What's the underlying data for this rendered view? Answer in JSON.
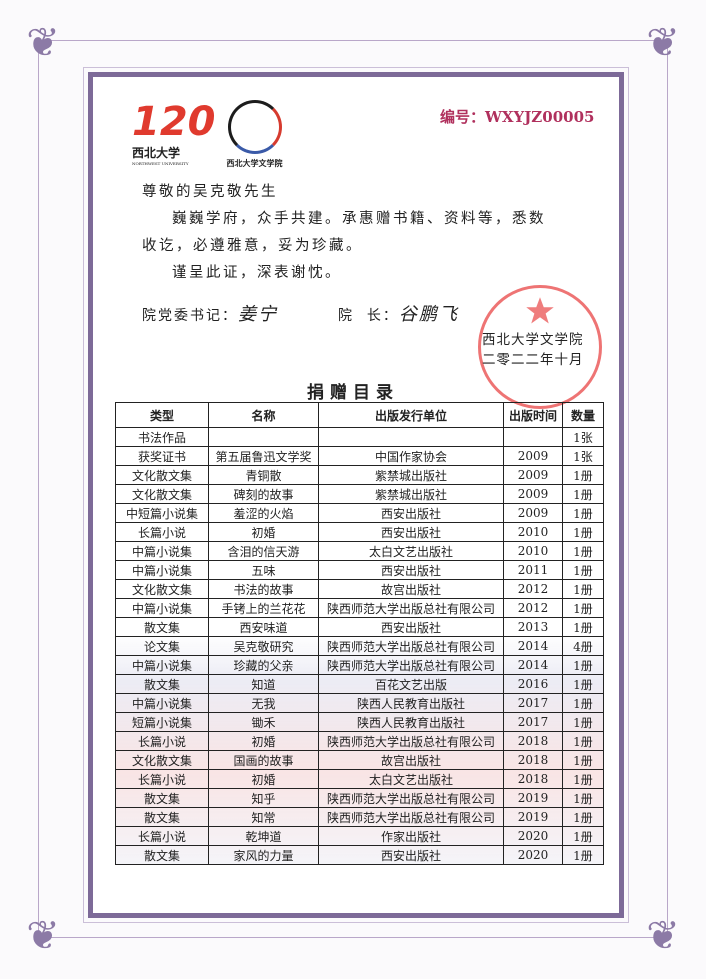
{
  "header": {
    "logo_left_text": "西北大学",
    "logo_left_sub": "NORTHWEST UNIVERSITY",
    "logo_right_text": "西北大学文学院",
    "serial_label": "编号：",
    "serial_value": "WXYJZ00005"
  },
  "letter": {
    "salutation": "尊敬的吴克敬先生",
    "line1": "巍巍学府，众手共建。承惠赠书籍、资料等，悉数",
    "line2": "收讫，必遵雅意，妥为珍藏。",
    "line3": "谨呈此证，深表谢忱。",
    "secretary_label": "院党委书记：",
    "secretary_signature": "姜宁",
    "dean_label": "院  长：",
    "dean_signature": "谷鹏飞",
    "org": "西北大学文学院",
    "date": "二零二二年十月",
    "seal_text": "西北大学文学院"
  },
  "catalog": {
    "title": "捐赠目录",
    "columns": [
      "类型",
      "名称",
      "出版发行单位",
      "出版时间",
      "数量"
    ],
    "rows": [
      [
        "书法作品",
        "",
        "",
        "",
        "1张"
      ],
      [
        "获奖证书",
        "第五届鲁迅文学奖",
        "中国作家协会",
        "2009",
        "1张"
      ],
      [
        "文化散文集",
        "青铜散",
        "紫禁城出版社",
        "2009",
        "1册"
      ],
      [
        "文化散文集",
        "碑刻的故事",
        "紫禁城出版社",
        "2009",
        "1册"
      ],
      [
        "中短篇小说集",
        "羞涩的火焰",
        "西安出版社",
        "2009",
        "1册"
      ],
      [
        "长篇小说",
        "初婚",
        "西安出版社",
        "2010",
        "1册"
      ],
      [
        "中篇小说集",
        "含泪的信天游",
        "太白文艺出版社",
        "2010",
        "1册"
      ],
      [
        "中篇小说集",
        "五味",
        "西安出版社",
        "2011",
        "1册"
      ],
      [
        "文化散文集",
        "书法的故事",
        "故宫出版社",
        "2012",
        "1册"
      ],
      [
        "中篇小说集",
        "手铐上的兰花花",
        "陕西师范大学出版总社有限公司",
        "2012",
        "1册"
      ],
      [
        "散文集",
        "西安味道",
        "西安出版社",
        "2013",
        "1册"
      ],
      [
        "论文集",
        "吴克敬研究",
        "陕西师范大学出版总社有限公司",
        "2014",
        "4册"
      ],
      [
        "中篇小说集",
        "珍藏的父亲",
        "陕西师范大学出版总社有限公司",
        "2014",
        "1册"
      ],
      [
        "散文集",
        "知道",
        "百花文艺出版",
        "2016",
        "1册"
      ],
      [
        "中篇小说集",
        "无我",
        "陕西人民教育出版社",
        "2017",
        "1册"
      ],
      [
        "短篇小说集",
        "锄禾",
        "陕西人民教育出版社",
        "2017",
        "1册"
      ],
      [
        "长篇小说",
        "初婚",
        "陕西师范大学出版总社有限公司",
        "2018",
        "1册"
      ],
      [
        "文化散文集",
        "国画的故事",
        "故宫出版社",
        "2018",
        "1册"
      ],
      [
        "长篇小说",
        "初婚",
        "太白文艺出版社",
        "2018",
        "1册"
      ],
      [
        "散文集",
        "知乎",
        "陕西师范大学出版总社有限公司",
        "2019",
        "1册"
      ],
      [
        "散文集",
        "知常",
        "陕西师范大学出版总社有限公司",
        "2019",
        "1册"
      ],
      [
        "长篇小说",
        "乾坤道",
        "作家出版社",
        "2020",
        "1册"
      ],
      [
        "散文集",
        "家风的力量",
        "西安出版社",
        "2020",
        "1册"
      ]
    ]
  },
  "colors": {
    "frame": "#7d6a98",
    "serial": "#b0305d",
    "seal": "#e84646",
    "logo_red": "#e03a2e"
  }
}
